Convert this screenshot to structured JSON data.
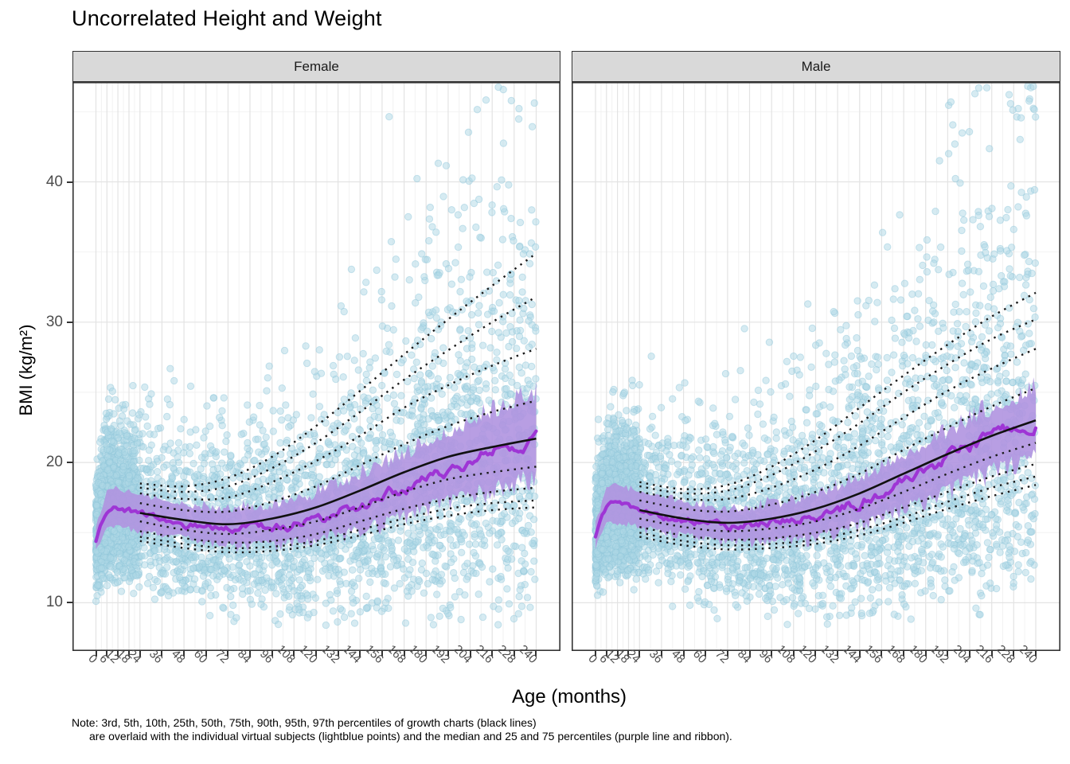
{
  "title": "Uncorrelated Height and Weight",
  "facets": [
    "Female",
    "Male"
  ],
  "axes": {
    "x": {
      "title": "Age (months)",
      "ticks": [
        0,
        6,
        12,
        18,
        24,
        36,
        48,
        60,
        72,
        84,
        96,
        108,
        120,
        132,
        144,
        156,
        168,
        180,
        192,
        204,
        216,
        228,
        240
      ],
      "minor_breaks": [
        3,
        9,
        15,
        21,
        30,
        42,
        54,
        66,
        78,
        90,
        102,
        114,
        126,
        138,
        150,
        162,
        174,
        186,
        198,
        210,
        222,
        234
      ],
      "range": [
        0,
        240
      ]
    },
    "y": {
      "title": "BMI (kg/m²)",
      "ticks": [
        10,
        20,
        30,
        40
      ],
      "minor_breaks": [
        15,
        25,
        35,
        45
      ],
      "range_displayed": [
        6.6,
        47.1
      ]
    }
  },
  "note": {
    "line1": "Note: 3rd, 5th, 10th, 25th, 50th, 75th, 90th, 95th, 97th percentiles of growth charts (black lines)",
    "line2": "are overlaid with the individual virtual subjects (lightblue points) and the median and 25 and 75 percentiles (purple line and ribbon)."
  },
  "colors": {
    "point_fill": "#add8e6",
    "point_stroke": "#8ec6da",
    "ribbon": "#b094e0",
    "median_line": "#9d2fd4",
    "growth_line": "#1a1a1a",
    "strip_bg": "#d9d9d9",
    "panel_border": "#333333",
    "grid_major": "#e3e3e3",
    "grid_minor": "#f2f2f2",
    "tick_label": "#4d4d4d"
  },
  "chart_data": {
    "type": "scatter",
    "overlays": [
      "growth_percentile_lines_dotted",
      "growth_median_line_solid",
      "sim_median_purple_line",
      "sim_iqr_purple_ribbon"
    ],
    "title": "Uncorrelated Height and Weight",
    "xlabel": "Age (months)",
    "ylabel": "BMI (kg/m²)",
    "xlim": [
      0,
      240
    ],
    "ylim_displayed": [
      6.6,
      47.1
    ],
    "grid": true,
    "legend": "none",
    "percentile_ages": [
      24,
      48,
      72,
      96,
      120,
      144,
      168,
      192,
      216,
      240
    ],
    "facets": [
      {
        "label": "Female",
        "growth_percentiles": {
          "p3": [
            14.4,
            13.9,
            13.6,
            13.7,
            14.1,
            14.8,
            15.6,
            16.2,
            16.6,
            16.8
          ],
          "p5": [
            14.7,
            14.2,
            13.9,
            14.0,
            14.4,
            15.2,
            16.0,
            16.7,
            17.1,
            17.3
          ],
          "p10": [
            15.1,
            14.6,
            14.3,
            14.4,
            14.9,
            15.8,
            16.7,
            17.4,
            17.9,
            18.2
          ],
          "p25": [
            15.8,
            15.2,
            14.9,
            15.2,
            15.8,
            16.8,
            17.9,
            18.8,
            19.3,
            19.7
          ],
          "p50": [
            16.4,
            15.9,
            15.6,
            16.0,
            16.8,
            18.0,
            19.3,
            20.4,
            21.1,
            21.7
          ],
          "p75": [
            17.1,
            16.6,
            16.5,
            17.2,
            18.3,
            19.8,
            21.3,
            22.6,
            23.6,
            24.4
          ],
          "p90": [
            17.8,
            17.4,
            17.5,
            18.6,
            20.1,
            21.9,
            23.9,
            25.5,
            26.9,
            28.1
          ],
          "p95": [
            18.2,
            17.9,
            18.3,
            19.6,
            21.4,
            23.6,
            25.9,
            28.0,
            30.0,
            31.8
          ],
          "p97": [
            18.5,
            18.3,
            18.9,
            20.4,
            22.6,
            25.1,
            27.7,
            30.2,
            32.6,
            34.9
          ]
        },
        "sim_median": {
          "ages": [
            0,
            3,
            6,
            9,
            12,
            18,
            24,
            36,
            48,
            60,
            72,
            84,
            96,
            108,
            120,
            132,
            144,
            156,
            168,
            180,
            192,
            204,
            216,
            228,
            240
          ],
          "values": [
            14.5,
            15.9,
            16.6,
            16.9,
            16.8,
            16.6,
            16.4,
            15.9,
            15.6,
            15.4,
            15.3,
            15.3,
            15.4,
            15.6,
            15.9,
            16.4,
            16.9,
            17.5,
            18.2,
            18.9,
            19.6,
            20.2,
            20.8,
            21.3,
            21.7
          ]
        },
        "sim_ribbon": {
          "ages": [
            0,
            6,
            12,
            24,
            48,
            72,
            96,
            120,
            144,
            168,
            192,
            216,
            240
          ],
          "p25": [
            13.8,
            15.5,
            15.6,
            15.2,
            14.8,
            14.3,
            14.4,
            14.8,
            15.6,
            16.6,
            17.7,
            18.7,
            19.6
          ],
          "p75": [
            15.2,
            17.9,
            18.0,
            17.6,
            16.9,
            16.4,
            16.7,
            17.5,
            18.7,
            20.2,
            21.8,
            23.2,
            24.3
          ]
        },
        "points": {
          "n": 4200,
          "seed": 20230,
          "bmi_min": 8.4,
          "bmi_max": 47.0,
          "sigma0": 0.14,
          "sigma_slope": 0.115
        }
      },
      {
        "label": "Male",
        "growth_percentiles": {
          "p3": [
            14.7,
            14.1,
            13.8,
            13.9,
            14.2,
            14.8,
            15.7,
            16.7,
            17.6,
            18.4
          ],
          "p5": [
            15.0,
            14.4,
            14.1,
            14.2,
            14.5,
            15.2,
            16.1,
            17.2,
            18.2,
            19.0
          ],
          "p10": [
            15.4,
            14.8,
            14.5,
            14.6,
            15.0,
            15.7,
            16.8,
            17.9,
            19.0,
            19.9
          ],
          "p25": [
            16.0,
            15.4,
            15.1,
            15.3,
            15.8,
            16.7,
            17.9,
            19.2,
            20.4,
            21.4
          ],
          "p50": [
            16.6,
            16.0,
            15.7,
            16.0,
            16.7,
            17.8,
            19.2,
            20.6,
            21.9,
            23.0
          ],
          "p75": [
            17.3,
            16.7,
            16.5,
            17.0,
            17.9,
            19.2,
            20.9,
            22.5,
            24.0,
            25.3
          ],
          "p90": [
            17.9,
            17.4,
            17.4,
            18.2,
            19.5,
            21.2,
            23.2,
            25.1,
            26.7,
            28.1
          ],
          "p95": [
            18.3,
            17.8,
            18.0,
            19.1,
            20.8,
            22.8,
            25.0,
            27.0,
            28.8,
            30.2
          ],
          "p97": [
            18.6,
            18.1,
            18.4,
            19.7,
            21.6,
            23.9,
            26.2,
            28.4,
            30.4,
            32.1
          ]
        },
        "sim_median": {
          "ages": [
            0,
            3,
            6,
            9,
            12,
            18,
            24,
            36,
            48,
            60,
            72,
            84,
            96,
            108,
            120,
            132,
            144,
            156,
            168,
            180,
            192,
            204,
            216,
            228,
            240
          ],
          "values": [
            14.8,
            16.2,
            16.9,
            17.2,
            17.1,
            16.9,
            16.6,
            16.1,
            15.8,
            15.6,
            15.5,
            15.5,
            15.6,
            15.8,
            16.1,
            16.6,
            17.2,
            17.9,
            18.7,
            19.5,
            20.3,
            21.1,
            21.8,
            22.5,
            23.0
          ]
        },
        "sim_ribbon": {
          "ages": [
            0,
            6,
            12,
            24,
            48,
            72,
            96,
            120,
            144,
            168,
            192,
            216,
            240
          ],
          "p25": [
            14.0,
            15.8,
            15.9,
            15.5,
            15.0,
            14.6,
            14.6,
            15.0,
            15.9,
            17.1,
            18.5,
            19.9,
            21.0
          ],
          "p75": [
            15.5,
            18.2,
            18.3,
            17.8,
            17.1,
            16.5,
            16.7,
            17.4,
            18.6,
            20.1,
            21.8,
            23.4,
            24.8
          ]
        },
        "points": {
          "n": 4200,
          "seed": 51121,
          "bmi_min": 8.4,
          "bmi_max": 47.0,
          "sigma0": 0.14,
          "sigma_slope": 0.115
        }
      }
    ]
  }
}
